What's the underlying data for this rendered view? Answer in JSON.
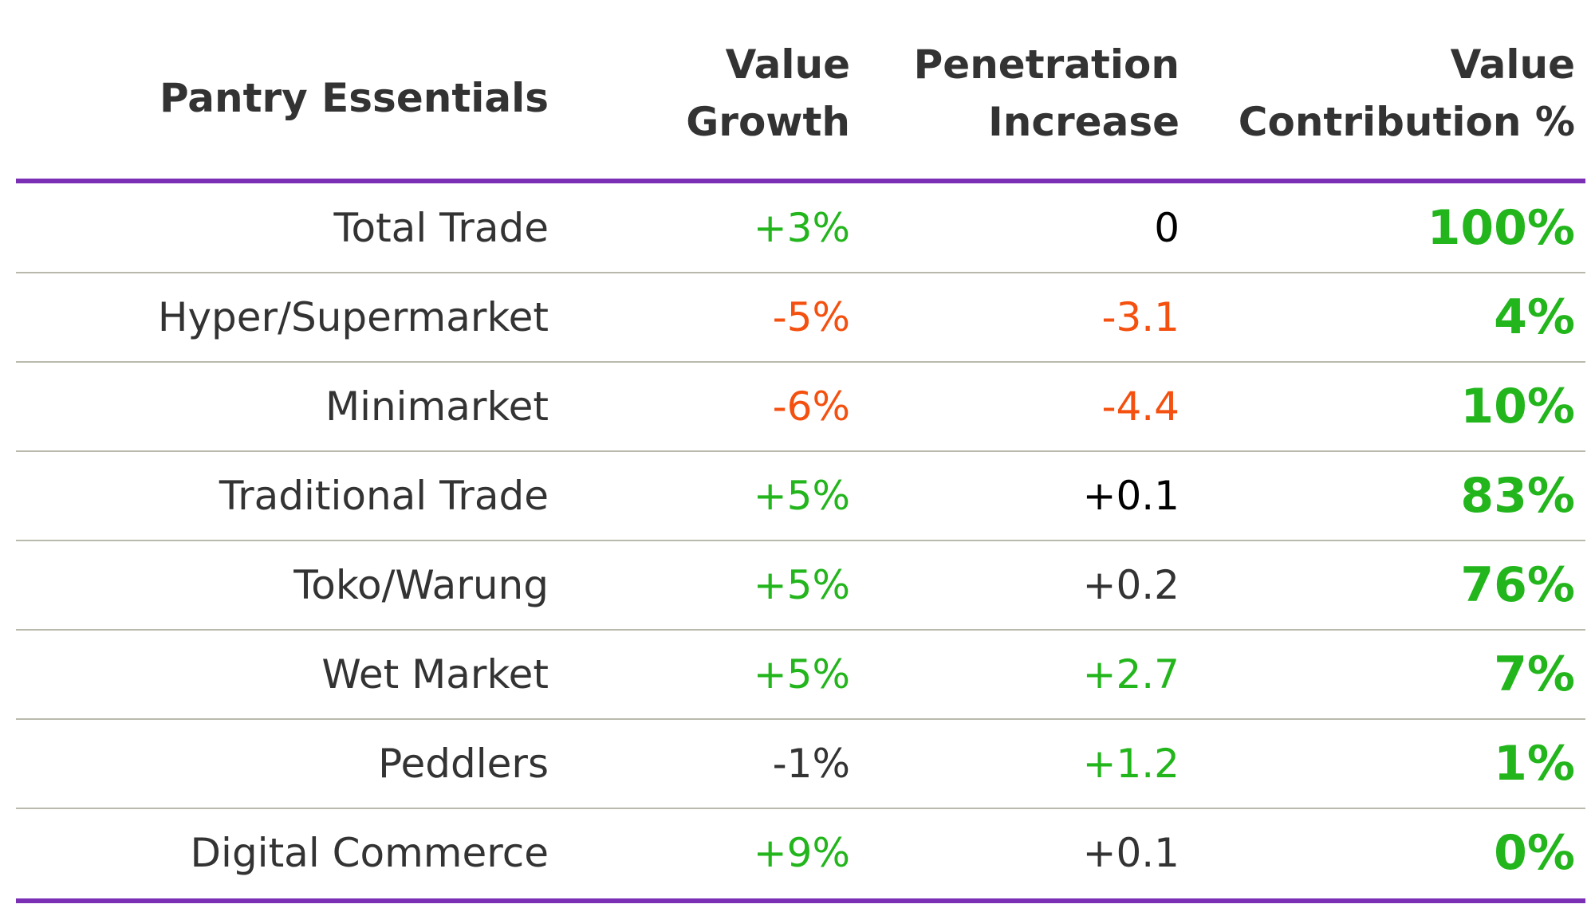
{
  "header": {
    "col1": [
      "Pantry Essentials"
    ],
    "col2": [
      "Value",
      "Growth"
    ],
    "col3": [
      "Penetration",
      "Increase"
    ],
    "col4": [
      "Value",
      "Contribution %"
    ]
  },
  "colors": {
    "rule": "#7b2fb5",
    "separator": "#b9b9ad",
    "positive": "#22b51c",
    "negative": "#f4500f",
    "neutral": "#333333",
    "neutral_strong": "#000000"
  },
  "chart_data": {
    "type": "table",
    "columns": [
      "Pantry Essentials",
      "Value Growth",
      "Penetration Increase",
      "Value Contribution %"
    ],
    "rows": [
      {
        "channel": "Total Trade",
        "value_growth": "+3%",
        "growth_tone": "pos",
        "penetration": "0",
        "pen_tone": "neu-black",
        "contribution": "100%"
      },
      {
        "channel": "Hyper/Supermarket",
        "value_growth": "-5%",
        "growth_tone": "neg",
        "penetration": "-3.1",
        "pen_tone": "neg",
        "contribution": "4%"
      },
      {
        "channel": "Minimarket",
        "value_growth": "-6%",
        "growth_tone": "neg",
        "penetration": "-4.4",
        "pen_tone": "neg",
        "contribution": "10%"
      },
      {
        "channel": "Traditional Trade",
        "value_growth": "+5%",
        "growth_tone": "pos",
        "penetration": "+0.1",
        "pen_tone": "neu-black",
        "contribution": "83%"
      },
      {
        "channel": "Toko/Warung",
        "value_growth": "+5%",
        "growth_tone": "pos",
        "penetration": "+0.2",
        "pen_tone": "neu-dark",
        "contribution": "76%"
      },
      {
        "channel": "Wet Market",
        "value_growth": "+5%",
        "growth_tone": "pos",
        "penetration": "+2.7",
        "pen_tone": "pos",
        "contribution": "7%"
      },
      {
        "channel": "Peddlers",
        "value_growth": "-1%",
        "growth_tone": "neu-dark",
        "penetration": "+1.2",
        "pen_tone": "pos",
        "contribution": "1%"
      },
      {
        "channel": "Digital Commerce",
        "value_growth": "+9%",
        "growth_tone": "pos",
        "penetration": "+0.1",
        "pen_tone": "neu-dark",
        "contribution": "0%"
      }
    ]
  }
}
